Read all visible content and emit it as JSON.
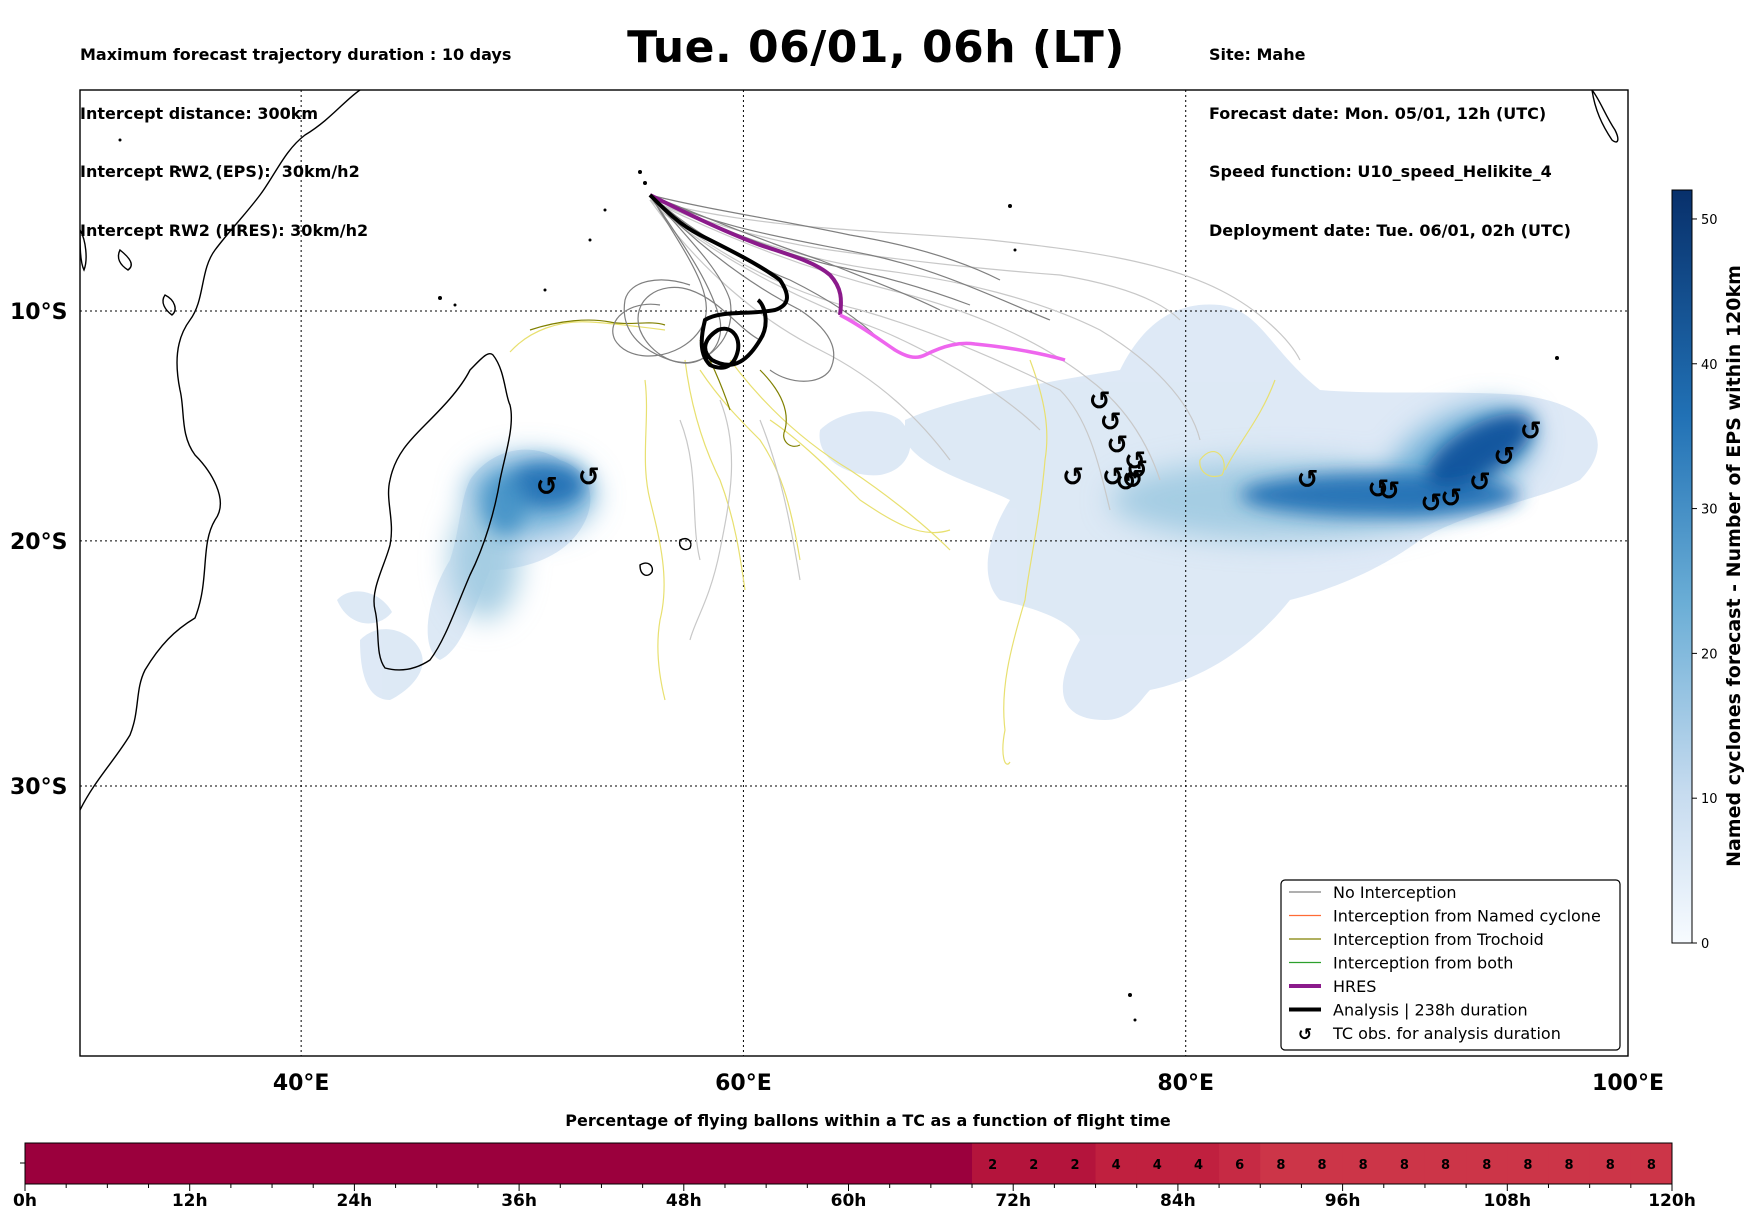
{
  "header": {
    "left_lines": [
      "Maximum forecast trajectory duration : 10 days",
      "Intercept distance: 300km",
      "Intercept RW2 (EPS):  30km/h2",
      "Intercept RW2 (HRES): 30km/h2"
    ],
    "title": "Tue. 06/01, 06h (LT)",
    "right_lines": [
      "Site: Mahe",
      "Forecast date: Mon. 05/01, 12h (UTC)",
      "Speed function: U10_speed_Helikite_4",
      "Deployment date: Tue. 06/01, 02h (UTC)"
    ]
  },
  "map": {
    "lon_range": [
      30,
      100
    ],
    "lat_range": [
      -42,
      0
    ],
    "lon_ticks": [
      {
        "value": 40,
        "label": "40°E"
      },
      {
        "value": 60,
        "label": "60°E"
      },
      {
        "value": 80,
        "label": "80°E"
      },
      {
        "value": 100,
        "label": "100°E"
      }
    ],
    "lat_ticks": [
      {
        "value": -10,
        "label": "10°S"
      },
      {
        "value": -20,
        "label": "20°S"
      },
      {
        "value": -30,
        "label": "30°S"
      }
    ],
    "tc_obs_symbol": "↺",
    "tc_obs_points": [
      [
        51.1,
        -17.7
      ],
      [
        53.0,
        -17.3
      ],
      [
        74.9,
        -17.3
      ],
      [
        76.1,
        -14.0
      ],
      [
        76.6,
        -14.9
      ],
      [
        76.9,
        -15.9
      ],
      [
        76.7,
        -17.3
      ],
      [
        77.7,
        -16.6
      ],
      [
        77.8,
        -17.0
      ],
      [
        77.6,
        -17.4
      ],
      [
        77.3,
        -17.5
      ],
      [
        85.5,
        -17.4
      ],
      [
        88.7,
        -17.8
      ],
      [
        89.2,
        -17.9
      ],
      [
        91.1,
        -18.4
      ],
      [
        92.0,
        -18.2
      ],
      [
        93.3,
        -17.5
      ],
      [
        94.4,
        -16.4
      ],
      [
        95.6,
        -15.3
      ]
    ],
    "colors": {
      "no_interception": "#7f7f7f",
      "named_cyclone": "#ff6b35",
      "trochoid": "#808000",
      "both": "#2ca02c",
      "hres": "#8b1a8b",
      "hres_late": "#ee66ee",
      "analysis": "#000000",
      "yellow_tracks": "#e8e070",
      "light_tracks": "#c8c8c8"
    }
  },
  "legend": {
    "items": [
      {
        "label": "No Interception",
        "style": "line",
        "color": "#7f7f7f"
      },
      {
        "label": "Interception from Named cyclone",
        "style": "line",
        "color": "#ff6b35"
      },
      {
        "label": "Interception from Trochoid",
        "style": "line",
        "color": "#808000"
      },
      {
        "label": "Interception from both",
        "style": "line",
        "color": "#2ca02c"
      },
      {
        "label": "HRES",
        "style": "thick",
        "color": "#8b1a8b"
      },
      {
        "label": "Analysis | 238h duration",
        "style": "thick",
        "color": "#000000"
      },
      {
        "label": "TC obs. for analysis duration",
        "style": "symbol",
        "color": "#000000"
      }
    ]
  },
  "colorbar": {
    "label": "Named cyclones forecast - Number of EPS within 120km",
    "min": 0,
    "max": 52,
    "ticks": [
      0,
      10,
      20,
      30,
      40,
      50
    ]
  },
  "chart_data": {
    "type": "heatmap",
    "title": "Percentage of flying ballons within a TC as a function of flight time",
    "x_unit": "h",
    "x_range": [
      0,
      120
    ],
    "x_ticks": [
      "0h",
      "12h",
      "24h",
      "36h",
      "48h",
      "60h",
      "72h",
      "84h",
      "96h",
      "108h",
      "120h"
    ],
    "cells": [
      {
        "start": 0,
        "end": 69,
        "value": 0,
        "label": ""
      },
      {
        "start": 69,
        "end": 72,
        "value": 2,
        "label": "2"
      },
      {
        "start": 72,
        "end": 75,
        "value": 2,
        "label": "2"
      },
      {
        "start": 75,
        "end": 78,
        "value": 2,
        "label": "2"
      },
      {
        "start": 78,
        "end": 81,
        "value": 4,
        "label": "4"
      },
      {
        "start": 81,
        "end": 84,
        "value": 4,
        "label": "4"
      },
      {
        "start": 84,
        "end": 87,
        "value": 4,
        "label": "4"
      },
      {
        "start": 87,
        "end": 90,
        "value": 6,
        "label": "6"
      },
      {
        "start": 90,
        "end": 93,
        "value": 8,
        "label": "8"
      },
      {
        "start": 93,
        "end": 96,
        "value": 8,
        "label": "8"
      },
      {
        "start": 96,
        "end": 99,
        "value": 8,
        "label": "8"
      },
      {
        "start": 99,
        "end": 102,
        "value": 8,
        "label": "8"
      },
      {
        "start": 102,
        "end": 105,
        "value": 8,
        "label": "8"
      },
      {
        "start": 105,
        "end": 108,
        "value": 8,
        "label": "8"
      },
      {
        "start": 108,
        "end": 111,
        "value": 8,
        "label": "8"
      },
      {
        "start": 111,
        "end": 114,
        "value": 8,
        "label": "8"
      },
      {
        "start": 114,
        "end": 117,
        "value": 8,
        "label": "8"
      },
      {
        "start": 117,
        "end": 120,
        "value": 8,
        "label": "8"
      }
    ],
    "color_scale": {
      "0": "#9b003d",
      "2": "#b4143c",
      "4": "#c0203f",
      "6": "#c62a44",
      "8": "#cc3548"
    }
  }
}
